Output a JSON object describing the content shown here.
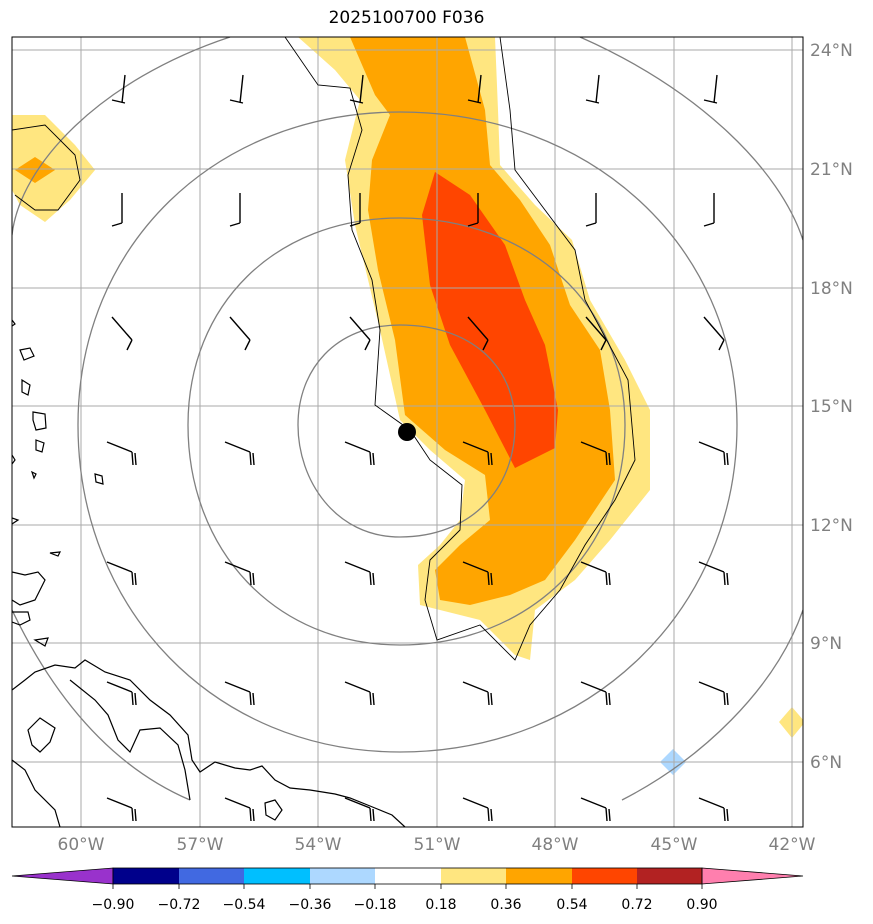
{
  "title": "2025100700 F036",
  "map": {
    "extent": {
      "lon_min": -61.0,
      "lon_max": -41.5,
      "lat_min": 4.5,
      "lat_max": 24.3
    },
    "gridline_color": "#aaaaaa",
    "lon_ticks": [
      {
        "value": -60,
        "label": "60°W"
      },
      {
        "value": -57,
        "label": "57°W"
      },
      {
        "value": -54,
        "label": "54°W"
      },
      {
        "value": -51,
        "label": "51°W"
      },
      {
        "value": -48,
        "label": "48°W"
      },
      {
        "value": -45,
        "label": "45°W"
      },
      {
        "value": -42,
        "label": "42°W"
      }
    ],
    "lat_ticks": [
      {
        "value": 24,
        "label": "24°N"
      },
      {
        "value": 21,
        "label": "21°N"
      },
      {
        "value": 18,
        "label": "18°N"
      },
      {
        "value": 15,
        "label": "15°N"
      },
      {
        "value": 12,
        "label": "12°N"
      },
      {
        "value": 9,
        "label": "9°N"
      },
      {
        "value": 6,
        "label": "6°N"
      }
    ],
    "storm_center": {
      "lon": -51.7,
      "lat": 14.4
    },
    "range_rings_deg": [
      2.5,
      5.5,
      8.3,
      11.3
    ]
  },
  "colorbar": {
    "colors": [
      "#9932cc",
      "#00008b",
      "#4169e1",
      "#00bfff",
      "#add8ff",
      "#ffffff",
      "#ffe680",
      "#ffa500",
      "#ff4500",
      "#b22222",
      "#ff7fae"
    ],
    "ticks": [
      "−0.90",
      "−0.72",
      "−0.54",
      "−0.36",
      "−0.18",
      "0.18",
      "0.36",
      "0.54",
      "0.72",
      "0.90"
    ]
  }
}
